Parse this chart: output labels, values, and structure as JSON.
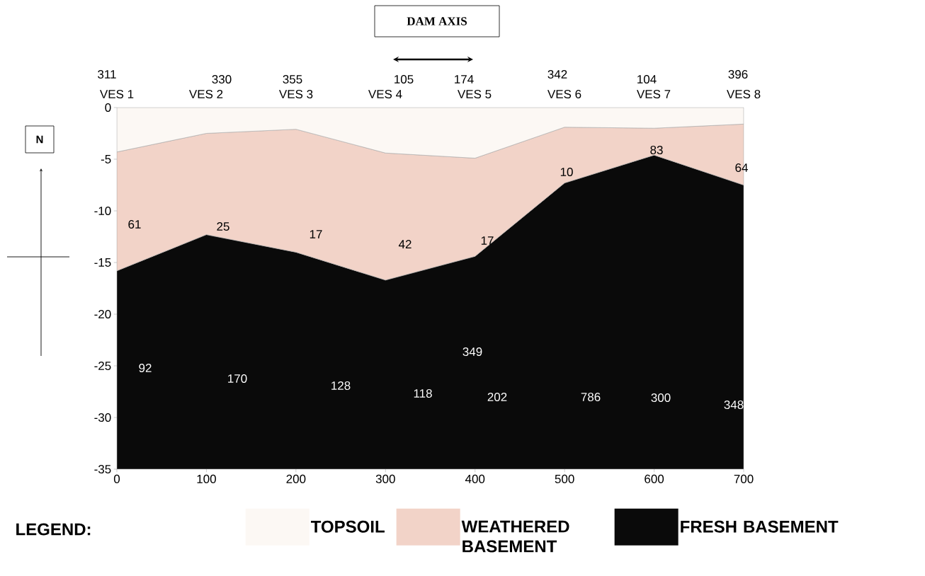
{
  "chart_data": {
    "type": "area",
    "stacked": true,
    "x": [
      0,
      100,
      200,
      300,
      400,
      500,
      600,
      700
    ],
    "series": [
      {
        "name": "TOPSOIL",
        "color": "#fcf8f4",
        "values": [
          -4.3,
          -2.5,
          -2.1,
          -4.4,
          -4.9,
          -1.9,
          -2.0,
          -1.6
        ]
      },
      {
        "name": "WEATHERED BASEMENT",
        "color": "#f2d3c8",
        "values": [
          -11.5,
          -9.8,
          -11.9,
          -12.3,
          -9.5,
          -5.4,
          -2.6,
          -5.9
        ]
      },
      {
        "name": "FRESH BASEMENT",
        "color": "#0a0a0a",
        "values": [
          -19.2,
          -22.7,
          -21.0,
          -18.3,
          -20.6,
          -27.7,
          -30.4,
          -27.5
        ]
      }
    ],
    "xlim": [
      0,
      700
    ],
    "xticks": [
      0,
      100,
      200,
      300,
      400,
      500,
      600,
      700
    ],
    "ylim": [
      -35,
      0
    ],
    "yticks": [
      -35,
      -30,
      -25,
      -20,
      -15,
      -10,
      -5,
      0
    ],
    "legend": "bottom",
    "legend_title": "LEGEND:",
    "annotations": [
      "311",
      "330",
      "355",
      "105",
      "174",
      "342",
      "104",
      "396",
      "VES 1",
      "VES 2",
      "VES 3",
      "VES 4",
      "VES 5",
      "VES 6",
      "VES 7",
      "VES 8",
      "61",
      "25",
      "17",
      "42",
      "17",
      "10",
      "83",
      "64",
      "92",
      "170",
      "128",
      "118",
      "349",
      "202",
      "786",
      "300",
      "348",
      "DAM AXIS",
      "N"
    ]
  }
}
